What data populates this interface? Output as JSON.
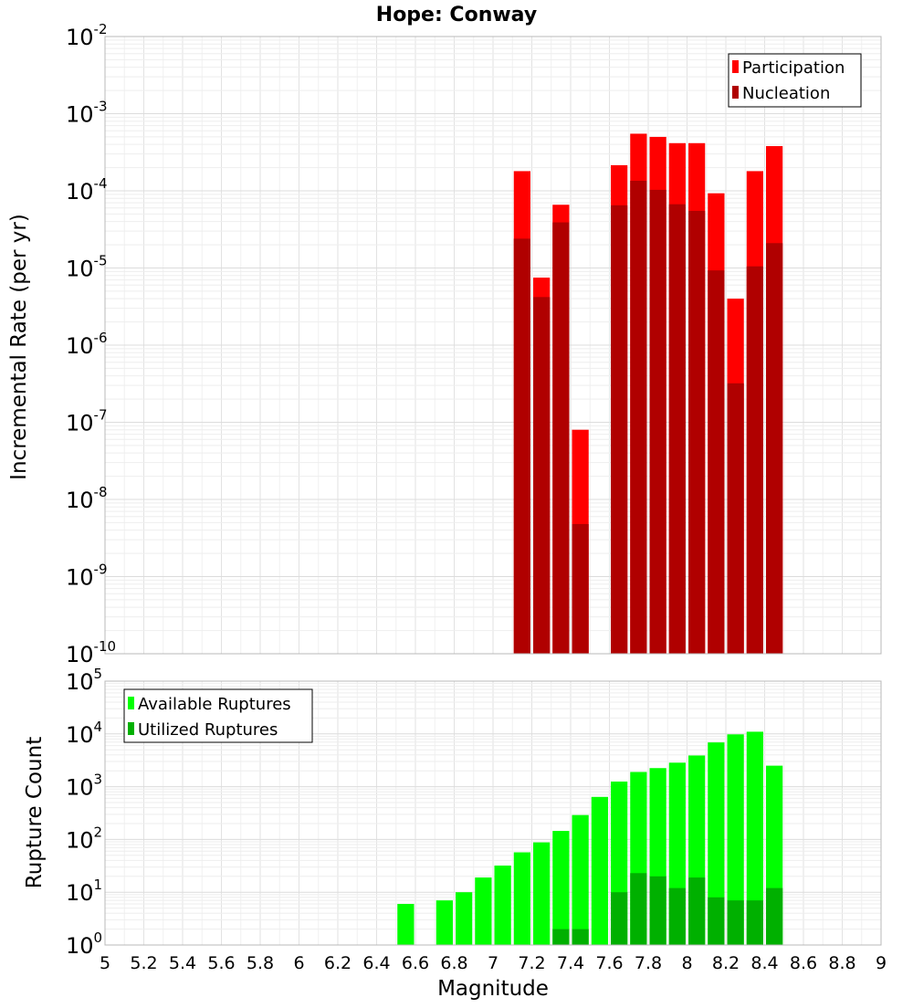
{
  "title": "Hope: Conway",
  "chart_data": [
    {
      "type": "bar",
      "title": "Hope: Conway",
      "xlabel": "",
      "ylabel": "Incremental Rate (per yr)",
      "yscale": "log",
      "xlim": [
        5,
        9
      ],
      "ylim": [
        1e-10,
        0.01
      ],
      "bin_width": 0.1,
      "y_ticks": [
        {
          "base": "10",
          "exp": "-10"
        },
        {
          "base": "10",
          "exp": "-9"
        },
        {
          "base": "10",
          "exp": "-8"
        },
        {
          "base": "10",
          "exp": "-7"
        },
        {
          "base": "10",
          "exp": "-6"
        },
        {
          "base": "10",
          "exp": "-5"
        },
        {
          "base": "10",
          "exp": "-4"
        },
        {
          "base": "10",
          "exp": "-3"
        },
        {
          "base": "10",
          "exp": "-2"
        }
      ],
      "legend_position": "top-right",
      "series": [
        {
          "name": "Participation",
          "color": "#ff0000",
          "x": [
            7.15,
            7.25,
            7.35,
            7.45,
            7.65,
            7.75,
            7.85,
            7.95,
            8.05,
            8.15,
            8.25,
            8.35,
            8.45
          ],
          "values": [
            0.00018,
            7.5e-06,
            6.6e-05,
            8e-08,
            0.000215,
            0.00055,
            0.0005,
            0.000415,
            0.000415,
            9.3e-05,
            4e-06,
            0.00018,
            0.00038
          ]
        },
        {
          "name": "Nucleation",
          "color": "#b00000",
          "x": [
            7.15,
            7.25,
            7.35,
            7.45,
            7.65,
            7.75,
            7.85,
            7.95,
            8.05,
            8.15,
            8.25,
            8.35,
            8.45
          ],
          "values": [
            2.4e-05,
            4.2e-06,
            3.9e-05,
            4.8e-09,
            6.5e-05,
            0.000135,
            0.000103,
            6.7e-05,
            5.5e-05,
            9.3e-06,
            3.2e-07,
            1.05e-05,
            2.1e-05
          ]
        }
      ]
    },
    {
      "type": "bar",
      "title": "",
      "xlabel": "Magnitude",
      "ylabel": "Rupture Count",
      "yscale": "log",
      "xlim": [
        5,
        9
      ],
      "ylim": [
        1,
        100000
      ],
      "bin_width": 0.1,
      "x_ticks": [
        "5",
        "5.2",
        "5.4",
        "5.6",
        "5.8",
        "6",
        "6.2",
        "6.4",
        "6.6",
        "6.8",
        "7",
        "7.2",
        "7.4",
        "7.6",
        "7.8",
        "8",
        "8.2",
        "8.4",
        "8.6",
        "8.8",
        "9"
      ],
      "y_ticks": [
        {
          "base": "10",
          "exp": "0"
        },
        {
          "base": "10",
          "exp": "1"
        },
        {
          "base": "10",
          "exp": "2"
        },
        {
          "base": "10",
          "exp": "3"
        },
        {
          "base": "10",
          "exp": "4"
        },
        {
          "base": "10",
          "exp": "5"
        }
      ],
      "legend_position": "top-left",
      "series": [
        {
          "name": "Available Ruptures",
          "color": "#00ff00",
          "x": [
            6.55,
            6.75,
            6.85,
            6.95,
            7.05,
            7.15,
            7.25,
            7.35,
            7.45,
            7.55,
            7.65,
            7.75,
            7.85,
            7.95,
            8.05,
            8.15,
            8.25,
            8.35,
            8.45
          ],
          "values": [
            6,
            7,
            10,
            19,
            32,
            57,
            88,
            145,
            290,
            640,
            1250,
            1900,
            2250,
            2850,
            3900,
            6900,
            9800,
            11000,
            2500
          ]
        },
        {
          "name": "Utilized Ruptures",
          "color": "#00b000",
          "x": [
            7.15,
            7.25,
            7.35,
            7.45,
            7.55,
            7.65,
            7.75,
            7.85,
            7.95,
            8.05,
            8.15,
            8.25,
            8.35,
            8.45
          ],
          "values": [
            1,
            1,
            2,
            2,
            1,
            10,
            23,
            20,
            12,
            19,
            8,
            7,
            7,
            12
          ]
        }
      ]
    }
  ]
}
